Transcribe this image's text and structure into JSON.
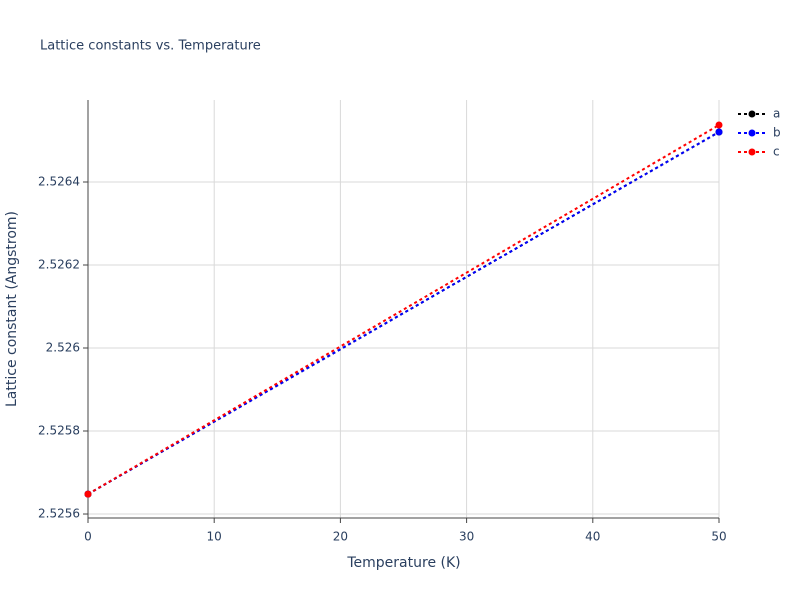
{
  "chart_data": {
    "type": "line",
    "title": "Lattice constants vs. Temperature",
    "x_label": "Temperature (K)",
    "y_label": "Lattice constant (Angstrom)",
    "x": [
      0,
      50
    ],
    "series": [
      {
        "name": "a",
        "color": "#000000",
        "values": [
          2.525648,
          2.5265205
        ]
      },
      {
        "name": "b",
        "color": "#0000ff",
        "values": [
          2.525648,
          2.5265205
        ]
      },
      {
        "name": "c",
        "color": "#ff0000",
        "values": [
          2.525648,
          2.5265373
        ]
      }
    ],
    "xlim": [
      0,
      50
    ],
    "xticks": [
      0,
      10,
      20,
      30,
      40,
      50
    ],
    "ylim": [
      2.5255904,
      2.5265976
    ],
    "yticks": [
      2.5256,
      2.5258,
      2.526,
      2.5262,
      2.5264
    ],
    "grid": true,
    "legend": "top-right"
  }
}
